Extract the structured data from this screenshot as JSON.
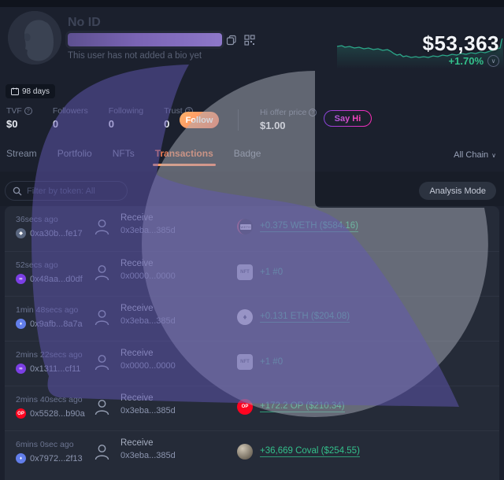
{
  "profile": {
    "name": "No ID",
    "bio": "This user has not added a bio yet",
    "age_badge": "98 days",
    "address_bar": "blurred-address",
    "balance": "$53,363",
    "change_pct": "+1.70%",
    "stats": [
      {
        "label": "TVF",
        "value": "$0",
        "has_info": true
      },
      {
        "label": "Followers",
        "value": "0",
        "has_info": false
      },
      {
        "label": "Following",
        "value": "0",
        "has_info": false
      },
      {
        "label": "Trust",
        "value": "0",
        "has_info": true
      }
    ],
    "follow_label": "Follow",
    "hi_offer": {
      "label": "Hi offer price",
      "value": "$1.00",
      "has_info": true
    },
    "say_hi_label": "Say Hi"
  },
  "tabs": {
    "items": [
      "Stream",
      "Portfolio",
      "NFTs",
      "Transactions",
      "Badge"
    ],
    "active": "Transactions",
    "chain_filter": "All Chain"
  },
  "filter": {
    "search_placeholder": "Filter by token: All",
    "search_value": "",
    "analysis_mode_label": "Analysis Mode"
  },
  "transactions": [
    {
      "time": "36secs ago",
      "from": "0xa30b...fe17",
      "from_chain": "slate",
      "action": "Receive",
      "to": "0x3eba...385d",
      "token": "weth",
      "amount": "+0.375 WETH ($584.16)",
      "underlined": true
    },
    {
      "time": "52secs ago",
      "from": "0x48aa...d0df",
      "from_chain": "purple",
      "action": "Receive",
      "to": "0x0000...0000",
      "token": "nft",
      "amount": "+1 #0",
      "underlined": false
    },
    {
      "time": "1min 48secs ago",
      "from": "0x9afb...8a7a",
      "from_chain": "blue",
      "action": "Receive",
      "to": "0x3eba...385d",
      "token": "eth",
      "amount": "+0.131 ETH ($204.08)",
      "underlined": true
    },
    {
      "time": "2mins 22secs ago",
      "from": "0x1311...cf11",
      "from_chain": "purple",
      "action": "Receive",
      "to": "0x0000...0000",
      "token": "nft",
      "amount": "+1 #0",
      "underlined": false
    },
    {
      "time": "2mins 40secs ago",
      "from": "0x5528...b90a",
      "from_chain": "op-red",
      "action": "Receive",
      "to": "0x3eba...385d",
      "token": "op",
      "amount": "+172.2 OP ($210.34)",
      "underlined": true
    },
    {
      "time": "6mins 0sec ago",
      "from": "0x7972...2f13",
      "from_chain": "blue",
      "action": "Receive",
      "to": "0x3eba...385d",
      "token": "coval",
      "amount": "+36,669 Coval ($254.55)",
      "underlined": true
    }
  ],
  "chart_data": {
    "type": "line",
    "title": "balance sparkline",
    "values": [
      71,
      72,
      70,
      71,
      69,
      70,
      68,
      69,
      67,
      68,
      66,
      67,
      64,
      55,
      53,
      54,
      50,
      52,
      48,
      50,
      49,
      50,
      48,
      52,
      50,
      54,
      52,
      56,
      54,
      58,
      56,
      60,
      58,
      62,
      60,
      64,
      66,
      68,
      71,
      90,
      95
    ],
    "ylim": [
      0,
      100
    ],
    "grid": false,
    "legend": "none",
    "line_color": "#2ca88a",
    "fill_color": "rgba(44,168,138,0.28)"
  },
  "icons": {
    "copy": "copy-squares",
    "qr": "qr-grid",
    "calendar": "calendar-glyph",
    "info": "?",
    "chevron_down": "∨",
    "search": "magnifier",
    "person": "head-and-shoulders outline",
    "eth_diamond": "♦",
    "op_letters": "OP",
    "nft_letters": "NFT",
    "weth_letters": "WETH"
  },
  "colors": {
    "page_bg": "#1b202d",
    "panel_bg": "#252b38",
    "accent_orange": "#ed7d54",
    "green": "#33c08b",
    "address_bar_gradient": [
      "#5d5090",
      "#8d77c9"
    ],
    "follow_gradient": [
      "#ffb36b",
      "#ff7a5c"
    ],
    "sayhi_gradient": [
      "#8a46e0",
      "#ff2db8"
    ],
    "overlay_purple": "rgba(98,88,180,0.5)",
    "overlay_gray": "rgba(168,172,184,0.5)",
    "chain_slate": "#5a6780",
    "chain_purple": "#7b3fe4",
    "chain_blue": "#627eea",
    "chain_red": "#ff0420"
  }
}
